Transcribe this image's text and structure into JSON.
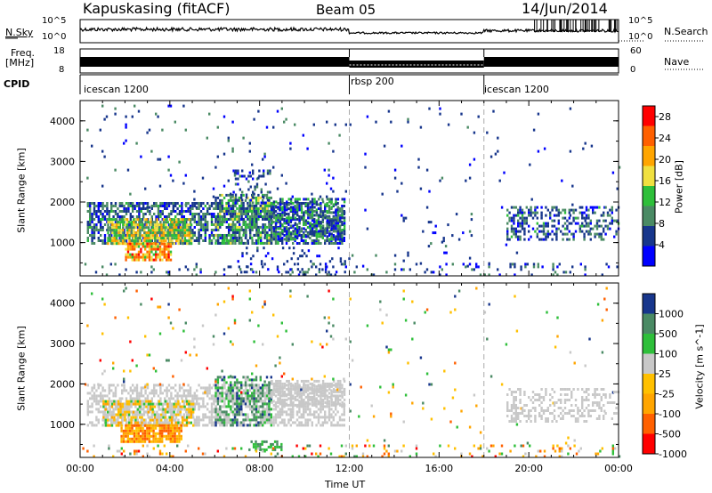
{
  "header": {
    "station": "Kapuskasing (fitACF)",
    "beam": "Beam 05",
    "date": "14/Jun/2014"
  },
  "noise_panel": {
    "left_label": "N.Sky",
    "left_ticks": [
      "10^5",
      "10^0"
    ],
    "right_label": "N.Search",
    "right_ticks": [
      "10^5",
      "10^0"
    ]
  },
  "freq_panel": {
    "left_label_1": "Freq.",
    "left_label_2": "[MHz]",
    "left_ticks": [
      "18",
      "8"
    ],
    "right_label": "Nave",
    "right_ticks": [
      "60",
      "0"
    ]
  },
  "cpid_panel": {
    "label": "CPID",
    "segments": [
      "icescan 1200",
      "rbsp 200",
      "icescan 1200"
    ],
    "segment_start_hours": [
      0,
      12,
      18
    ]
  },
  "colors": {
    "power": [
      "#0000ff",
      "#17368c",
      "#4a8a64",
      "#2ebf3a",
      "#f0e040",
      "#ffa500",
      "#ff6000",
      "#ff0000"
    ],
    "velocity": [
      "#17368c",
      "#4a8a64",
      "#2ebf3a",
      "#c8c8c8",
      "#ffc000",
      "#ffa500",
      "#ff6000",
      "#ff0000"
    ]
  },
  "chart_data": [
    {
      "type": "heatmap",
      "title": "",
      "ylabel": "Slant Range [km]",
      "xlim_hours": [
        0,
        24
      ],
      "ylim": [
        180,
        4500
      ],
      "yticks": [
        "1000",
        "2000",
        "3000",
        "4000"
      ],
      "colorbar_label": "Power [dB]",
      "colorbar_ticks": [
        "4",
        "8",
        "12",
        "16",
        "20",
        "24",
        "28"
      ],
      "colorbar_range": [
        0,
        30
      ],
      "regions": [
        {
          "t0": 0.3,
          "t1": 11.8,
          "r0": 1000,
          "r1": 2000,
          "dens": 0.6,
          "v0": 2,
          "v1": 12
        },
        {
          "t0": 1.2,
          "t1": 5.0,
          "r0": 1000,
          "r1": 1600,
          "dens": 0.8,
          "v0": 8,
          "v1": 22
        },
        {
          "t0": 2.0,
          "t1": 4.0,
          "r0": 600,
          "r1": 1000,
          "dens": 0.8,
          "v0": 14,
          "v1": 28
        },
        {
          "t0": 6.0,
          "t1": 8.5,
          "r0": 1000,
          "r1": 2200,
          "dens": 0.5,
          "v0": 4,
          "v1": 16
        },
        {
          "t0": 6.8,
          "t1": 8.5,
          "r0": 2000,
          "r1": 2800,
          "dens": 0.3,
          "v0": 2,
          "v1": 10
        },
        {
          "t0": 8.5,
          "t1": 11.8,
          "r0": 1100,
          "r1": 2100,
          "dens": 0.5,
          "v0": 2,
          "v1": 14
        },
        {
          "t0": 7.0,
          "t1": 12.0,
          "r0": 300,
          "r1": 900,
          "dens": 0.12,
          "v0": 2,
          "v1": 8
        },
        {
          "t0": 0.0,
          "t1": 24.0,
          "r0": 180,
          "r1": 500,
          "dens": 0.12,
          "v0": 2,
          "v1": 10
        },
        {
          "t0": 12.0,
          "t1": 24.0,
          "r0": 400,
          "r1": 4400,
          "dens": 0.012,
          "v0": 2,
          "v1": 8
        },
        {
          "t0": 15.5,
          "t1": 18.0,
          "r0": 900,
          "r1": 1800,
          "dens": 0.05,
          "v0": 2,
          "v1": 8
        },
        {
          "t0": 19.0,
          "t1": 24.0,
          "r0": 1100,
          "r1": 1900,
          "dens": 0.4,
          "v0": 2,
          "v1": 12
        },
        {
          "t0": 0.0,
          "t1": 12.0,
          "r0": 1800,
          "r1": 4400,
          "dens": 0.02,
          "v0": 2,
          "v1": 10
        }
      ]
    },
    {
      "type": "heatmap",
      "title": "",
      "xlabel": "Time UT",
      "ylabel": "Slant Range [km]",
      "xlim_hours": [
        0,
        24
      ],
      "xticks": [
        "00:00",
        "04:00",
        "08:00",
        "12:00",
        "16:00",
        "20:00",
        "00:00"
      ],
      "ylim": [
        180,
        4500
      ],
      "yticks": [
        "1000",
        "2000",
        "3000",
        "4000"
      ],
      "colorbar_label": "Velocity [m s^-1]",
      "colorbar_ticks": [
        "1000",
        "500",
        "100",
        "25",
        "-25",
        "-100",
        "-500",
        "-1000"
      ],
      "regions": [
        {
          "t0": 0.3,
          "t1": 11.8,
          "r0": 1000,
          "r1": 2000,
          "dens": 0.55,
          "v0": 3,
          "v1": 3
        },
        {
          "t0": 1.0,
          "t1": 5.0,
          "r0": 1000,
          "r1": 1600,
          "dens": 0.6,
          "v0": 2,
          "v1": 5
        },
        {
          "t0": 1.8,
          "t1": 4.5,
          "r0": 600,
          "r1": 1000,
          "dens": 0.85,
          "v0": 4,
          "v1": 6
        },
        {
          "t0": 6.0,
          "t1": 8.5,
          "r0": 1000,
          "r1": 2200,
          "dens": 0.5,
          "v0": 0,
          "v1": 3
        },
        {
          "t0": 8.5,
          "t1": 11.8,
          "r0": 1500,
          "r1": 2100,
          "dens": 0.6,
          "v0": 3,
          "v1": 3
        },
        {
          "t0": 7.5,
          "t1": 9.0,
          "r0": 400,
          "r1": 600,
          "dens": 0.5,
          "v0": 1,
          "v1": 2
        },
        {
          "t0": 0.0,
          "t1": 24.0,
          "r0": 180,
          "r1": 500,
          "dens": 0.12,
          "v0": 1,
          "v1": 7
        },
        {
          "t0": 12.0,
          "t1": 24.0,
          "r0": 400,
          "r1": 4400,
          "dens": 0.012,
          "v0": 0,
          "v1": 6
        },
        {
          "t0": 19.0,
          "t1": 24.0,
          "r0": 1100,
          "r1": 1900,
          "dens": 0.35,
          "v0": 3,
          "v1": 3
        },
        {
          "t0": 0.0,
          "t1": 12.0,
          "r0": 1800,
          "r1": 4400,
          "dens": 0.02,
          "v0": 0,
          "v1": 7
        }
      ]
    }
  ]
}
